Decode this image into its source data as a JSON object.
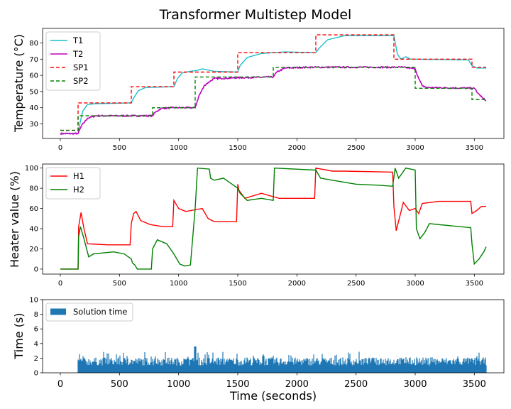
{
  "figure": {
    "title": "Transformer Multistep Model"
  },
  "colors": {
    "T1": "#17becf",
    "T2": "#bf00bf",
    "SP1": "#ff0000",
    "SP2": "#008000",
    "H1": "#ff0000",
    "H2": "#008000",
    "bars": "#1f77b4"
  },
  "chart_data": [
    {
      "type": "line",
      "ylabel": "Temperature (°C)",
      "xlim": [
        -150,
        3750
      ],
      "ylim": [
        21,
        89
      ],
      "xticks": [
        0,
        500,
        1000,
        1500,
        2000,
        2500,
        3000,
        3500
      ],
      "yticks": [
        30,
        40,
        50,
        60,
        70,
        80
      ],
      "legend_position": "upper-left",
      "series": [
        {
          "name": "T1",
          "style": "solid",
          "points": [
            [
              0,
              24
            ],
            [
              150,
              24
            ],
            [
              165,
              30
            ],
            [
              190,
              38
            ],
            [
              230,
              42
            ],
            [
              300,
              42.5
            ],
            [
              600,
              43
            ],
            [
              620,
              46
            ],
            [
              660,
              50.5
            ],
            [
              720,
              52.5
            ],
            [
              960,
              53
            ],
            [
              990,
              58
            ],
            [
              1030,
              61.5
            ],
            [
              1100,
              62.5
            ],
            [
              1150,
              63
            ],
            [
              1200,
              64
            ],
            [
              1300,
              62.5
            ],
            [
              1500,
              62
            ],
            [
              1520,
              66
            ],
            [
              1580,
              71
            ],
            [
              1700,
              73.5
            ],
            [
              1900,
              74.5
            ],
            [
              2160,
              74
            ],
            [
              2190,
              77
            ],
            [
              2260,
              82
            ],
            [
              2400,
              84.5
            ],
            [
              2820,
              84.5
            ],
            [
              2850,
              73
            ],
            [
              2880,
              70
            ],
            [
              2920,
              71.5
            ],
            [
              2960,
              70
            ],
            [
              3450,
              69.5
            ],
            [
              3480,
              66
            ],
            [
              3520,
              64.5
            ],
            [
              3600,
              64.5
            ]
          ]
        },
        {
          "name": "T2",
          "style": "solid",
          "points": [
            [
              0,
              24
            ],
            [
              150,
              24
            ],
            [
              180,
              29
            ],
            [
              230,
              33.5
            ],
            [
              300,
              35
            ],
            [
              780,
              35
            ],
            [
              800,
              37
            ],
            [
              850,
              39.5
            ],
            [
              950,
              40
            ],
            [
              1140,
              40
            ],
            [
              1170,
              47
            ],
            [
              1220,
              54
            ],
            [
              1300,
              58
            ],
            [
              1500,
              58.5
            ],
            [
              1800,
              59
            ],
            [
              1830,
              62
            ],
            [
              1900,
              64.5
            ],
            [
              2100,
              65
            ],
            [
              2500,
              65
            ],
            [
              2900,
              65
            ],
            [
              3000,
              64
            ],
            [
              3030,
              58
            ],
            [
              3060,
              53.5
            ],
            [
              3100,
              52.5
            ],
            [
              3500,
              52
            ],
            [
              3530,
              49
            ],
            [
              3570,
              46
            ],
            [
              3600,
              44.5
            ]
          ]
        },
        {
          "name": "SP1",
          "style": "dashed",
          "points": [
            [
              0,
              26
            ],
            [
              150,
              26
            ],
            [
              150,
              43
            ],
            [
              600,
              43
            ],
            [
              600,
              53
            ],
            [
              960,
              53
            ],
            [
              960,
              62
            ],
            [
              1500,
              62
            ],
            [
              1500,
              74
            ],
            [
              2160,
              74
            ],
            [
              2160,
              85
            ],
            [
              2820,
              85
            ],
            [
              2820,
              70
            ],
            [
              3480,
              70
            ],
            [
              3480,
              65
            ],
            [
              3600,
              65
            ]
          ]
        },
        {
          "name": "SP2",
          "style": "dashed",
          "points": [
            [
              0,
              26
            ],
            [
              150,
              26
            ],
            [
              150,
              35
            ],
            [
              780,
              35
            ],
            [
              780,
              40
            ],
            [
              1140,
              40
            ],
            [
              1140,
              59
            ],
            [
              1800,
              59
            ],
            [
              1800,
              65
            ],
            [
              3000,
              65
            ],
            [
              3000,
              52
            ],
            [
              3480,
              52
            ],
            [
              3480,
              45
            ],
            [
              3600,
              45
            ]
          ]
        }
      ]
    },
    {
      "type": "line",
      "ylabel": "Heater value (%)",
      "xlim": [
        -150,
        3750
      ],
      "ylim": [
        -5,
        104
      ],
      "xticks": [
        0,
        500,
        1000,
        1500,
        2000,
        2500,
        3000,
        3500
      ],
      "yticks": [
        0,
        20,
        40,
        60,
        80,
        100
      ],
      "legend_position": "upper-left",
      "series": [
        {
          "name": "H1",
          "style": "solid",
          "points": [
            [
              0,
              0
            ],
            [
              150,
              0
            ],
            [
              155,
              42
            ],
            [
              175,
              56
            ],
            [
              200,
              40
            ],
            [
              230,
              25
            ],
            [
              400,
              24
            ],
            [
              590,
              24
            ],
            [
              600,
              45
            ],
            [
              620,
              55
            ],
            [
              640,
              57
            ],
            [
              680,
              48
            ],
            [
              760,
              44
            ],
            [
              870,
              42
            ],
            [
              950,
              42
            ],
            [
              960,
              68
            ],
            [
              1000,
              60
            ],
            [
              1060,
              57
            ],
            [
              1200,
              60
            ],
            [
              1250,
              50
            ],
            [
              1300,
              47
            ],
            [
              1490,
              47
            ],
            [
              1500,
              84
            ],
            [
              1510,
              78
            ],
            [
              1560,
              70
            ],
            [
              1700,
              75
            ],
            [
              1850,
              70
            ],
            [
              2150,
              70
            ],
            [
              2160,
              100
            ],
            [
              2300,
              97
            ],
            [
              2400,
              97
            ],
            [
              2810,
              96
            ],
            [
              2820,
              62
            ],
            [
              2840,
              38
            ],
            [
              2870,
              52
            ],
            [
              2900,
              66
            ],
            [
              2950,
              58
            ],
            [
              3000,
              60
            ],
            [
              3030,
              55
            ],
            [
              3060,
              65
            ],
            [
              3200,
              67
            ],
            [
              3470,
              67
            ],
            [
              3480,
              55
            ],
            [
              3520,
              58
            ],
            [
              3560,
              62
            ],
            [
              3600,
              62
            ]
          ]
        },
        {
          "name": "H2",
          "style": "solid",
          "points": [
            [
              0,
              0
            ],
            [
              150,
              0
            ],
            [
              155,
              32
            ],
            [
              170,
              42
            ],
            [
              200,
              30
            ],
            [
              240,
              12
            ],
            [
              280,
              15
            ],
            [
              450,
              17
            ],
            [
              540,
              15
            ],
            [
              600,
              10
            ],
            [
              610,
              6
            ],
            [
              630,
              4
            ],
            [
              650,
              0
            ],
            [
              770,
              0
            ],
            [
              780,
              20
            ],
            [
              820,
              29
            ],
            [
              900,
              25
            ],
            [
              960,
              15
            ],
            [
              1010,
              5
            ],
            [
              1050,
              3
            ],
            [
              1100,
              4
            ],
            [
              1140,
              60
            ],
            [
              1160,
              100
            ],
            [
              1260,
              99
            ],
            [
              1270,
              90
            ],
            [
              1300,
              88
            ],
            [
              1380,
              90
            ],
            [
              1500,
              80
            ],
            [
              1520,
              75
            ],
            [
              1580,
              68
            ],
            [
              1700,
              70
            ],
            [
              1800,
              68
            ],
            [
              1810,
              100
            ],
            [
              2150,
              98
            ],
            [
              2160,
              98
            ],
            [
              2200,
              90
            ],
            [
              2300,
              88
            ],
            [
              2500,
              84
            ],
            [
              2700,
              83
            ],
            [
              2810,
              82
            ],
            [
              2830,
              100
            ],
            [
              2860,
              90
            ],
            [
              2920,
              100
            ],
            [
              3000,
              98
            ],
            [
              3010,
              40
            ],
            [
              3040,
              30
            ],
            [
              3080,
              36
            ],
            [
              3120,
              45
            ],
            [
              3200,
              44
            ],
            [
              3470,
              41
            ],
            [
              3480,
              25
            ],
            [
              3500,
              5
            ],
            [
              3540,
              10
            ],
            [
              3580,
              17
            ],
            [
              3600,
              22
            ]
          ]
        }
      ]
    },
    {
      "type": "bar",
      "ylabel": "Time (s)",
      "xlabel": "Time (seconds)",
      "xlim": [
        -150,
        3750
      ],
      "ylim": [
        0,
        10
      ],
      "xticks": [
        0,
        500,
        1000,
        1500,
        2000,
        2500,
        3000,
        3500
      ],
      "yticks": [
        0,
        2,
        4,
        6,
        8,
        10
      ],
      "legend_position": "upper-left",
      "series": [
        {
          "name": "Solution time",
          "x_range": [
            150,
            3600
          ],
          "typical_value_range": [
            1.0,
            3.0
          ],
          "max_value": 3.6
        }
      ]
    }
  ]
}
